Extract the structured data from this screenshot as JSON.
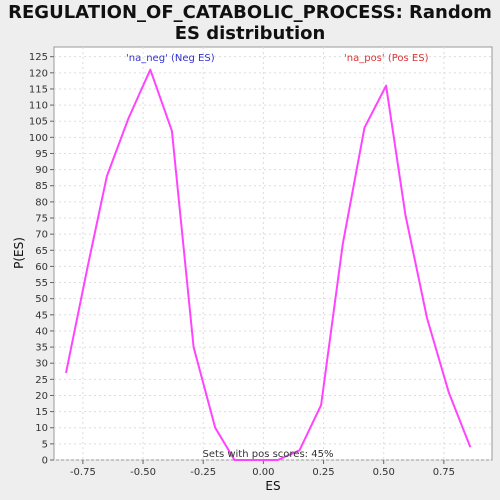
{
  "chart_data": {
    "type": "line",
    "title": "REGULATION_OF_CATABOLIC_PROCESS: Random ES distribution",
    "xlabel": "ES",
    "ylabel": "P(ES)",
    "xlim": [
      -0.87,
      0.95
    ],
    "ylim": [
      0,
      128
    ],
    "x_ticks": [
      -0.75,
      -0.5,
      -0.25,
      0.0,
      0.25,
      0.5,
      0.75
    ],
    "x_tick_labels": [
      "-0.75",
      "-0.50",
      "-0.25",
      "0.00",
      "0.25",
      "0.50",
      "0.75"
    ],
    "y_ticks": [
      0,
      5,
      10,
      15,
      20,
      25,
      30,
      35,
      40,
      45,
      50,
      55,
      60,
      65,
      70,
      75,
      80,
      85,
      90,
      95,
      100,
      105,
      110,
      115,
      120,
      125
    ],
    "grid": true,
    "series": [
      {
        "color": "#ff44ff",
        "x": [
          -0.82,
          -0.73,
          -0.65,
          -0.56,
          -0.47,
          -0.38,
          -0.29,
          -0.2,
          -0.12,
          -0.03,
          0.06,
          0.15,
          0.24,
          0.33,
          0.42,
          0.51,
          0.59,
          0.68,
          0.77,
          0.86
        ],
        "y": [
          27,
          60,
          88,
          106,
          121,
          102,
          35,
          10,
          0,
          0,
          0,
          3,
          17,
          67,
          103,
          116,
          76,
          44,
          21,
          4
        ]
      }
    ],
    "legend": [
      {
        "label": "'na_neg' (Neg ES)",
        "color": "#3333cc"
      },
      {
        "label": "'na_pos' (Pos ES)",
        "color": "#dd3333"
      }
    ],
    "annotation": "Sets with pos scores: 45%"
  }
}
